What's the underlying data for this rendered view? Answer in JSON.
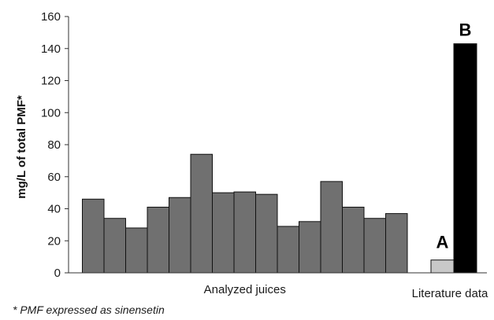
{
  "chart_data": {
    "type": "bar",
    "ylabel": "mg/L of total PMF*",
    "ylim": [
      0,
      160
    ],
    "yticks": [
      "0",
      "20",
      "40",
      "60",
      "80",
      "100",
      "120",
      "140",
      "160"
    ],
    "grid": false,
    "groups": [
      {
        "label": "Analyzed juices",
        "color": "#707070",
        "values": [
          46,
          34,
          28,
          41,
          47,
          74,
          50,
          50.5,
          49,
          29,
          32,
          57,
          41,
          34,
          37
        ]
      },
      {
        "label": "Literature data",
        "bars": [
          {
            "label": "A",
            "value": 8,
            "color": "#c8c8c8"
          },
          {
            "label": "B",
            "value": 143,
            "color": "#000000"
          }
        ]
      }
    ],
    "footnote": "* PMF expressed as sinensetin"
  }
}
